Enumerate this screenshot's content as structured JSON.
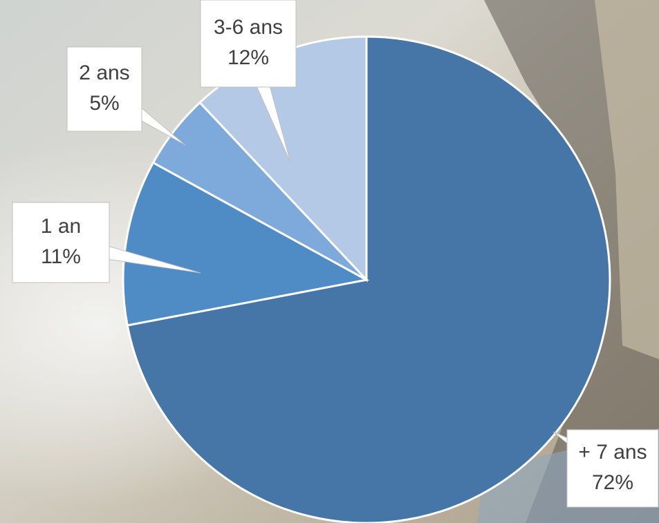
{
  "chart_data": {
    "type": "pie",
    "categories": [
      "+ 7 ans",
      "1 an",
      "2 ans",
      "3-6 ans"
    ],
    "values": [
      72,
      11,
      5,
      12
    ],
    "value_labels": [
      "72%",
      "11%",
      "5%",
      "12%"
    ],
    "colors": [
      "#4675a8",
      "#4f8cc5",
      "#7eaadb",
      "#b4c9e6"
    ]
  }
}
